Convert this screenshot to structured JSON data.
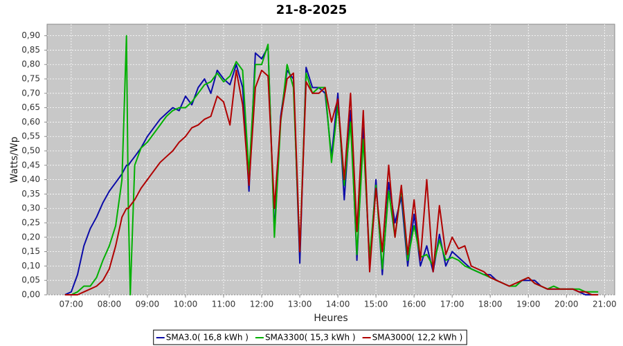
{
  "chart_data": {
    "type": "line",
    "title": "21-8-2025",
    "x_label": "Heures",
    "y_label": "Watts/Wp",
    "x": [
      "06:50",
      "07:00",
      "07:10",
      "07:20",
      "07:30",
      "07:40",
      "07:50",
      "08:00",
      "08:10",
      "08:20",
      "08:27",
      "08:30",
      "08:33",
      "08:40",
      "08:50",
      "09:00",
      "09:10",
      "09:20",
      "09:30",
      "09:40",
      "09:50",
      "10:00",
      "10:10",
      "10:20",
      "10:30",
      "10:40",
      "10:50",
      "11:00",
      "11:10",
      "11:20",
      "11:30",
      "11:40",
      "11:50",
      "12:00",
      "12:10",
      "12:20",
      "12:30",
      "12:40",
      "12:50",
      "13:00",
      "13:10",
      "13:20",
      "13:30",
      "13:40",
      "13:50",
      "14:00",
      "14:10",
      "14:20",
      "14:30",
      "14:40",
      "14:50",
      "15:00",
      "15:10",
      "15:20",
      "15:30",
      "15:40",
      "15:50",
      "16:00",
      "16:10",
      "16:20",
      "16:30",
      "16:40",
      "16:50",
      "17:00",
      "17:10",
      "17:20",
      "17:30",
      "17:40",
      "17:50",
      "18:00",
      "18:10",
      "18:20",
      "18:30",
      "18:40",
      "18:50",
      "19:00",
      "19:10",
      "19:20",
      "19:30",
      "19:40",
      "19:50",
      "20:00",
      "20:10",
      "20:20",
      "20:30",
      "20:40",
      "20:50"
    ],
    "series": [
      {
        "name": "SMA3.0( 16,8 kWh )",
        "color": "#0a0aa8",
        "values": [
          0,
          0.01,
          0.07,
          0.17,
          0.23,
          0.27,
          0.32,
          0.36,
          0.39,
          0.42,
          0.45,
          0.45,
          0.46,
          0.48,
          0.51,
          0.55,
          0.58,
          0.61,
          0.63,
          0.65,
          0.64,
          0.69,
          0.66,
          0.72,
          0.75,
          0.7,
          0.78,
          0.75,
          0.73,
          0.8,
          0.72,
          0.36,
          0.84,
          0.82,
          0.86,
          0.22,
          0.62,
          0.78,
          0.75,
          0.11,
          0.79,
          0.72,
          0.72,
          0.7,
          0.48,
          0.7,
          0.33,
          0.64,
          0.12,
          0.58,
          0.1,
          0.4,
          0.07,
          0.39,
          0.25,
          0.34,
          0.1,
          0.28,
          0.1,
          0.17,
          0.08,
          0.21,
          0.1,
          0.15,
          0.13,
          0.11,
          0.09,
          0.08,
          0.07,
          0.07,
          0.05,
          0.04,
          0.03,
          0.03,
          0.05,
          0.05,
          0.05,
          0.03,
          0.02,
          0.02,
          0.02,
          0.02,
          0.02,
          0.01,
          0,
          0,
          0
        ]
      },
      {
        "name": "SMA3300( 15,3 kWh )",
        "color": "#00b000",
        "values": [
          0,
          0,
          0.01,
          0.03,
          0.03,
          0.06,
          0.12,
          0.17,
          0.24,
          0.4,
          0.9,
          0.3,
          0,
          0.45,
          0.51,
          0.53,
          0.56,
          0.59,
          0.62,
          0.64,
          0.65,
          0.65,
          0.67,
          0.7,
          0.73,
          0.74,
          0.77,
          0.74,
          0.76,
          0.81,
          0.78,
          0.42,
          0.8,
          0.8,
          0.87,
          0.2,
          0.6,
          0.8,
          0.72,
          0.15,
          0.77,
          0.7,
          0.72,
          0.72,
          0.46,
          0.66,
          0.38,
          0.6,
          0.14,
          0.54,
          0.13,
          0.38,
          0.09,
          0.36,
          0.2,
          0.37,
          0.12,
          0.24,
          0.13,
          0.14,
          0.1,
          0.19,
          0.12,
          0.13,
          0.12,
          0.1,
          0.09,
          0.08,
          0.07,
          0.06,
          0.05,
          0.04,
          0.03,
          0.03,
          0.05,
          0.06,
          0.04,
          0.03,
          0.02,
          0.03,
          0.02,
          0.02,
          0.02,
          0.02,
          0.01,
          0.01,
          0.01
        ]
      },
      {
        "name": "SMA3000( 12,2 kWh )",
        "color": "#b00000",
        "values": [
          0,
          0,
          0,
          0.01,
          0.02,
          0.03,
          0.05,
          0.09,
          0.17,
          0.27,
          0.3,
          0.3,
          0.31,
          0.33,
          0.37,
          0.4,
          0.43,
          0.46,
          0.48,
          0.5,
          0.53,
          0.55,
          0.58,
          0.59,
          0.61,
          0.62,
          0.69,
          0.67,
          0.59,
          0.78,
          0.66,
          0.38,
          0.72,
          0.78,
          0.76,
          0.3,
          0.61,
          0.75,
          0.77,
          0.15,
          0.74,
          0.7,
          0.7,
          0.72,
          0.6,
          0.68,
          0.4,
          0.7,
          0.22,
          0.64,
          0.08,
          0.37,
          0.15,
          0.45,
          0.2,
          0.38,
          0.14,
          0.33,
          0.12,
          0.4,
          0.08,
          0.31,
          0.14,
          0.2,
          0.16,
          0.17,
          0.1,
          0.09,
          0.08,
          0.06,
          0.05,
          0.04,
          0.03,
          0.04,
          0.05,
          0.06,
          0.04,
          0.03,
          0.02,
          0.02,
          0.02,
          0.02,
          0.02,
          0.01,
          0.01,
          0,
          0
        ]
      }
    ],
    "xlim": [
      "06:22",
      "21:16"
    ],
    "xticks": [
      "07:00",
      "08:00",
      "09:00",
      "10:00",
      "11:00",
      "12:00",
      "13:00",
      "14:00",
      "15:00",
      "16:00",
      "17:00",
      "18:00",
      "19:00",
      "20:00",
      "21:00"
    ],
    "ylim": [
      0,
      0.94
    ],
    "yticks": [
      {
        "value": 0,
        "label": "0,00"
      },
      {
        "value": 0.05,
        "label": "0,05"
      },
      {
        "value": 0.1,
        "label": "0,10"
      },
      {
        "value": 0.15,
        "label": "0,15"
      },
      {
        "value": 0.2,
        "label": "0,20"
      },
      {
        "value": 0.25,
        "label": "0,25"
      },
      {
        "value": 0.3,
        "label": "0,30"
      },
      {
        "value": 0.35,
        "label": "0,35"
      },
      {
        "value": 0.4,
        "label": "0,40"
      },
      {
        "value": 0.45,
        "label": "0,45"
      },
      {
        "value": 0.5,
        "label": "0,50"
      },
      {
        "value": 0.55,
        "label": "0,55"
      },
      {
        "value": 0.6,
        "label": "0,60"
      },
      {
        "value": 0.65,
        "label": "0,65"
      },
      {
        "value": 0.7,
        "label": "0,70"
      },
      {
        "value": 0.75,
        "label": "0,75"
      },
      {
        "value": 0.8,
        "label": "0,80"
      },
      {
        "value": 0.85,
        "label": "0,85"
      },
      {
        "value": 0.9,
        "label": "0,90"
      }
    ],
    "grid": true,
    "legend": "bottom"
  }
}
